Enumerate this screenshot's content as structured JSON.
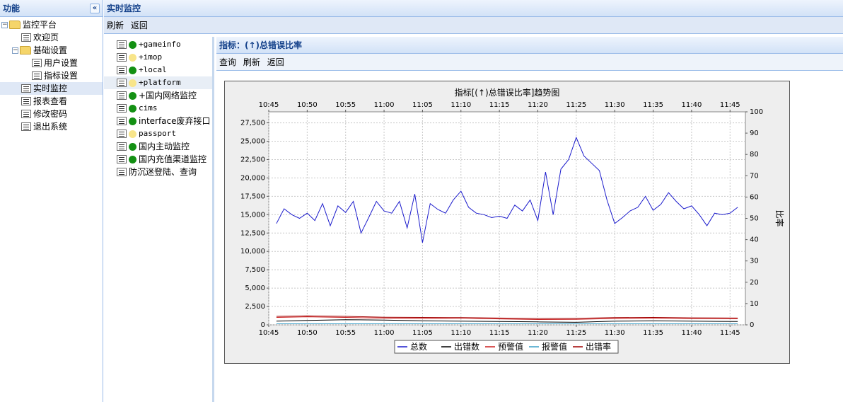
{
  "sidebar": {
    "title": "功能",
    "tree": [
      {
        "label": "监控平台",
        "level": 0,
        "type": "folder",
        "expanded": true
      },
      {
        "label": "欢迎页",
        "level": 1,
        "type": "leaf"
      },
      {
        "label": "基础设置",
        "level": 1,
        "type": "folder",
        "expanded": true
      },
      {
        "label": "用户设置",
        "level": 2,
        "type": "leaf"
      },
      {
        "label": "指标设置",
        "level": 2,
        "type": "leaf"
      },
      {
        "label": "实时监控",
        "level": 1,
        "type": "leaf",
        "selected": true
      },
      {
        "label": "报表查看",
        "level": 1,
        "type": "leaf"
      },
      {
        "label": "修改密码",
        "level": 1,
        "type": "leaf"
      },
      {
        "label": "退出系统",
        "level": 1,
        "type": "leaf"
      }
    ]
  },
  "main": {
    "title": "实时监控",
    "toolbar": {
      "refresh": "刷新",
      "back": "返回"
    },
    "monitors": [
      {
        "label": "+gameinfo",
        "status": "green"
      },
      {
        "label": "+imop",
        "status": "yellow"
      },
      {
        "label": "+local",
        "status": "green"
      },
      {
        "label": "+platform",
        "status": "yellow",
        "highlight": true
      },
      {
        "label": "+国内网络监控",
        "status": "green"
      },
      {
        "label": "cims",
        "status": "green"
      },
      {
        "label": "interface废弃接口",
        "status": "green"
      },
      {
        "label": "passport",
        "status": "yellow"
      },
      {
        "label": "国内主动监控",
        "status": "green"
      },
      {
        "label": "国内充值渠道监控",
        "status": "green"
      },
      {
        "label": "防沉迷登陆、查询",
        "status": "none"
      }
    ],
    "detail": {
      "title": "指标：(↑)总错误比率",
      "toolbar": {
        "query": "查询",
        "refresh": "刷新",
        "back": "返回"
      }
    }
  },
  "colors": {
    "total": "#1c1ccc",
    "errors": "#000000",
    "warn": "#cc2020",
    "alarm": "#3aa0c8",
    "rate": "#a00000"
  },
  "chart_data": {
    "type": "line",
    "title": "指标[(↑)总错误比率]趋势图",
    "xlabel": "",
    "ylabel": "",
    "y2label": "比率",
    "x_ticks": [
      "10:45",
      "10:50",
      "10:55",
      "11:00",
      "11:05",
      "11:10",
      "11:15",
      "11:20",
      "11:25",
      "11:30",
      "11:35",
      "11:40",
      "11:45"
    ],
    "x_range": [
      "10:45",
      "11:47"
    ],
    "ylim": [
      0,
      29000
    ],
    "y_ticks": [
      "0",
      "2,500",
      "5,000",
      "7,500",
      "10,000",
      "12,500",
      "15,000",
      "17,500",
      "20,000",
      "22,500",
      "25,000",
      "27,500"
    ],
    "y2lim": [
      0,
      100
    ],
    "y2_ticks": [
      "0",
      "10",
      "20",
      "30",
      "40",
      "50",
      "60",
      "70",
      "80",
      "90",
      "100"
    ],
    "grid": true,
    "legend_position": "bottom",
    "series": [
      {
        "name": "总数",
        "axis": "left",
        "color": "#1c1ccc",
        "x": [
          "10:46",
          "10:47",
          "10:48",
          "10:49",
          "10:50",
          "10:51",
          "10:52",
          "10:53",
          "10:54",
          "10:55",
          "10:56",
          "10:57",
          "10:58",
          "10:59",
          "11:00",
          "11:01",
          "11:02",
          "11:03",
          "11:04",
          "11:05",
          "11:06",
          "11:07",
          "11:08",
          "11:09",
          "11:10",
          "11:11",
          "11:12",
          "11:13",
          "11:14",
          "11:15",
          "11:16",
          "11:17",
          "11:18",
          "11:19",
          "11:20",
          "11:21",
          "11:22",
          "11:23",
          "11:24",
          "11:25",
          "11:26",
          "11:27",
          "11:28",
          "11:29",
          "11:30",
          "11:31",
          "11:32",
          "11:33",
          "11:34",
          "11:35",
          "11:36",
          "11:37",
          "11:38",
          "11:39",
          "11:40",
          "11:41",
          "11:42",
          "11:43",
          "11:44",
          "11:45",
          "11:46"
        ],
        "values": [
          13800,
          15800,
          15000,
          14500,
          15200,
          14200,
          16500,
          13500,
          16200,
          15300,
          16800,
          12500,
          14600,
          16800,
          15500,
          15200,
          16800,
          13200,
          17800,
          11200,
          16500,
          15700,
          15200,
          17000,
          18200,
          16000,
          15200,
          15000,
          14600,
          14800,
          14500,
          16300,
          15500,
          17000,
          14200,
          20800,
          15000,
          21200,
          22500,
          25500,
          23000,
          22000,
          21000,
          17000,
          13800,
          14600,
          15500,
          16000,
          17500,
          15600,
          16400,
          18000,
          16800,
          15800,
          16200,
          15000,
          13500,
          15200,
          15000,
          15200,
          16000
        ]
      },
      {
        "name": "出错数",
        "axis": "left",
        "color": "#000000",
        "x": [
          "10:46",
          "10:50",
          "10:55",
          "11:00",
          "11:05",
          "11:10",
          "11:15",
          "11:20",
          "11:25",
          "11:30",
          "11:35",
          "11:40",
          "11:46"
        ],
        "values": [
          500,
          600,
          700,
          650,
          550,
          500,
          450,
          400,
          350,
          500,
          550,
          500,
          450
        ]
      },
      {
        "name": "预警值",
        "axis": "right",
        "color": "#cc2020",
        "x": [
          "10:46",
          "10:50",
          "10:55",
          "11:00",
          "11:05",
          "11:10",
          "11:15",
          "11:20",
          "11:25",
          "11:30",
          "11:35",
          "11:40",
          "11:46"
        ],
        "values": [
          3.5,
          3.8,
          3.5,
          3.2,
          3,
          3.2,
          2.8,
          2.5,
          2.6,
          3,
          3.2,
          3,
          2.9
        ]
      },
      {
        "name": "报警值",
        "axis": "right",
        "color": "#3aa0c8",
        "x": [
          "10:46",
          "11:46"
        ],
        "values": [
          0.5,
          0.5
        ]
      },
      {
        "name": "出错率",
        "axis": "right",
        "color": "#a00000",
        "x": [
          "10:46",
          "10:50",
          "10:55",
          "11:00",
          "11:05",
          "11:10",
          "11:15",
          "11:20",
          "11:25",
          "11:30",
          "11:35",
          "11:40",
          "11:46"
        ],
        "values": [
          4,
          4.2,
          4,
          3.6,
          3.5,
          3.4,
          3.2,
          3,
          3.1,
          3.4,
          3.5,
          3.3,
          3.2
        ]
      }
    ]
  }
}
